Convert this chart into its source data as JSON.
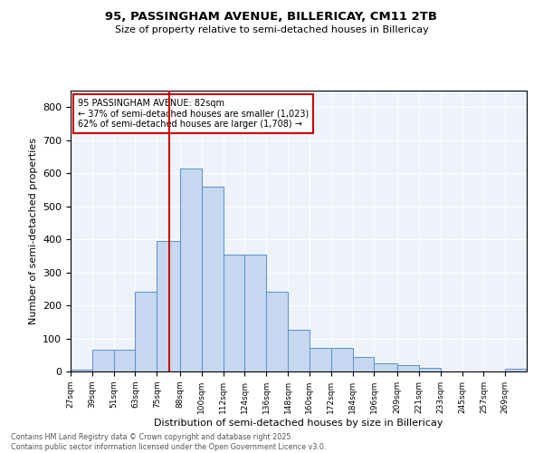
{
  "title_line1": "95, PASSINGHAM AVENUE, BILLERICAY, CM11 2TB",
  "title_line2": "Size of property relative to semi-detached houses in Billericay",
  "xlabel": "Distribution of semi-detached houses by size in Billericay",
  "ylabel": "Number of semi-detached properties",
  "bin_labels": [
    "27sqm",
    "39sqm",
    "51sqm",
    "63sqm",
    "75sqm",
    "88sqm",
    "100sqm",
    "112sqm",
    "124sqm",
    "136sqm",
    "148sqm",
    "160sqm",
    "172sqm",
    "184sqm",
    "196sqm",
    "209sqm",
    "221sqm",
    "233sqm",
    "245sqm",
    "257sqm",
    "269sqm"
  ],
  "bin_edges": [
    27,
    39,
    51,
    63,
    75,
    88,
    100,
    112,
    124,
    136,
    148,
    160,
    172,
    184,
    196,
    209,
    221,
    233,
    245,
    257,
    269
  ],
  "bar_heights": [
    5,
    65,
    65,
    240,
    395,
    615,
    560,
    355,
    355,
    240,
    125,
    70,
    70,
    45,
    25,
    20,
    10,
    0,
    0,
    0,
    8
  ],
  "bar_color": "#c5d8f0",
  "bar_edge_color": "#5b8fc9",
  "property_size": 82,
  "property_label": "95 PASSINGHAM AVENUE: 82sqm",
  "smaller_pct": "37%",
  "smaller_count": "1,023",
  "larger_pct": "62%",
  "larger_count": "1,708",
  "vline_color": "#cc0000",
  "ylim": [
    0,
    850
  ],
  "yticks": [
    0,
    100,
    200,
    300,
    400,
    500,
    600,
    700,
    800
  ],
  "footer_line1": "Contains HM Land Registry data © Crown copyright and database right 2025.",
  "footer_line2": "Contains public sector information licensed under the Open Government Licence v3.0.",
  "bg_color": "#eef2fa"
}
